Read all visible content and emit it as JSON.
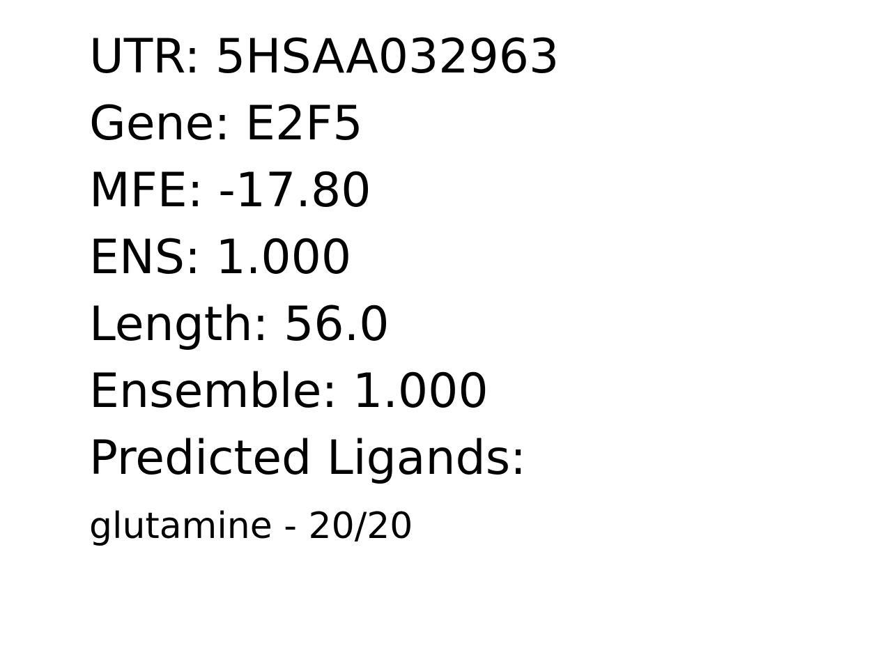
{
  "record": {
    "utr": "UTR: 5HSAA032963",
    "gene": "Gene: E2F5",
    "mfe": "MFE: -17.80",
    "ens": "ENS: 1.000",
    "length": "Length: 56.0",
    "ensemble": "Ensemble: 1.000",
    "predicted_ligands_heading": "Predicted Ligands:",
    "ligands": [
      "glutamine - 20/20"
    ]
  }
}
